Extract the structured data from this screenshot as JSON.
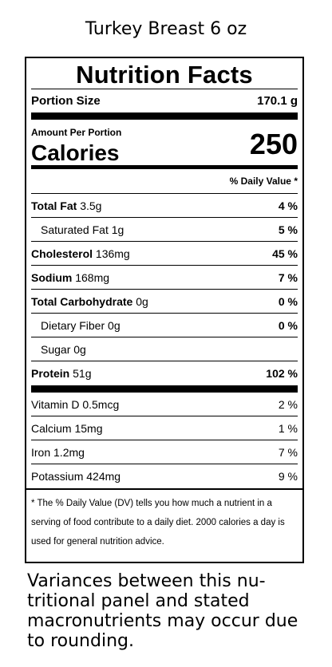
{
  "header": {
    "title": "Turkey Breast 6 oz"
  },
  "panel": {
    "heading": "Nutrition Facts",
    "portion_label": "Portion Size",
    "portion_value": "170.1 g",
    "amount_label": "Amount Per Portion",
    "calories_label": "Calories",
    "calories_value": "250",
    "dv_header": "% Daily Value *",
    "nutrients": [
      {
        "name": "Total Fat",
        "amount": "3.5g",
        "dv": "4 %"
      },
      {
        "name": "Saturated Fat",
        "amount": "1g",
        "dv": "5 %"
      },
      {
        "name": "Cholesterol",
        "amount": "136mg",
        "dv": "45 %"
      },
      {
        "name": "Sodium",
        "amount": "168mg",
        "dv": "7 %"
      },
      {
        "name": "Total Carbohydrate",
        "amount": "0g",
        "dv": "0 %"
      },
      {
        "name": "Dietary Fiber",
        "amount": "0g",
        "dv": "0 %"
      },
      {
        "name": "Sugar",
        "amount": "0g",
        "dv": ""
      },
      {
        "name": "Protein",
        "amount": "51g",
        "dv": "102 %"
      }
    ],
    "vitamins": [
      {
        "name": "Vitamin D",
        "amount": "0.5mcg",
        "dv": "2 %"
      },
      {
        "name": "Calcium",
        "amount": "15mg",
        "dv": "1 %"
      },
      {
        "name": "Iron",
        "amount": "1.2mg",
        "dv": "7 %"
      },
      {
        "name": "Potassium",
        "amount": "424mg",
        "dv": "9 %"
      }
    ],
    "footnote": "* The % Daily Value (DV) tells you how much a nutrient in a serving of food contribute to a daily diet. 2000 calories a day is used for general nutrition advice."
  },
  "note": "Variances between this nu-tritional panel and stated macronutrients may occur due to rounding."
}
